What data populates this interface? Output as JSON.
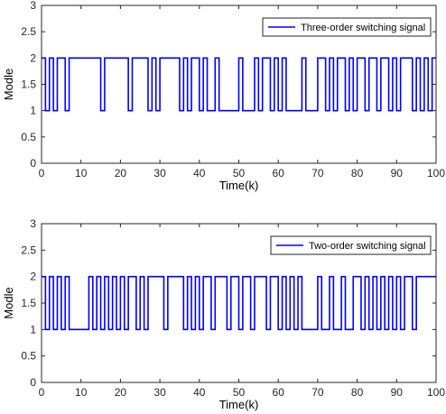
{
  "chart_data": [
    {
      "type": "line",
      "step": "post",
      "xlabel": "Time(k)",
      "ylabel": "Modle",
      "xlim": [
        0,
        100
      ],
      "ylim": [
        0,
        3
      ],
      "xticks": [
        "0",
        "10",
        "20",
        "30",
        "40",
        "50",
        "60",
        "70",
        "80",
        "90",
        "100"
      ],
      "yticks": [
        "0",
        "0.5",
        "1",
        "1.5",
        "2",
        "2.5",
        "3"
      ],
      "legend_position": "top-right",
      "series": [
        {
          "name": "Three-order switching signal",
          "color": "#0000ff",
          "x": [
            0,
            1,
            2,
            3,
            4,
            6,
            7,
            15,
            16,
            22,
            23,
            27,
            28,
            29,
            30,
            35,
            36,
            37,
            38,
            40,
            41,
            42,
            44,
            45,
            50,
            51,
            54,
            55,
            56,
            58,
            59,
            60,
            61,
            62,
            66,
            67,
            70,
            72,
            73,
            74,
            75,
            77,
            78,
            79,
            80,
            82,
            83,
            85,
            86,
            88,
            89,
            90,
            91,
            94,
            95,
            96,
            97,
            98,
            99,
            100
          ],
          "y": [
            2,
            1,
            2,
            1,
            2,
            1,
            2,
            1,
            2,
            1,
            2,
            1,
            2,
            1,
            2,
            1,
            2,
            1,
            2,
            1,
            2,
            1,
            2,
            1,
            2,
            1,
            2,
            1,
            2,
            1,
            2,
            1,
            2,
            1,
            2,
            1,
            2,
            1,
            2,
            1,
            2,
            1,
            2,
            1,
            2,
            1,
            2,
            1,
            2,
            1,
            2,
            1,
            2,
            1,
            2,
            1,
            2,
            1,
            2,
            2
          ]
        }
      ]
    },
    {
      "type": "line",
      "step": "post",
      "xlabel": "Time(k)",
      "ylabel": "Modle",
      "xlim": [
        0,
        100
      ],
      "ylim": [
        0,
        3
      ],
      "xticks": [
        "0",
        "10",
        "20",
        "30",
        "40",
        "50",
        "60",
        "70",
        "80",
        "90",
        "100"
      ],
      "yticks": [
        "0",
        "0.5",
        "1",
        "1.5",
        "2",
        "2.5",
        "3"
      ],
      "legend_position": "top-right",
      "series": [
        {
          "name": "Two-order switching signal",
          "color": "#0000ff",
          "x": [
            0,
            1,
            2,
            3,
            4,
            5,
            6,
            7,
            12,
            13,
            14,
            15,
            16,
            17,
            18,
            19,
            20,
            21,
            22,
            24,
            25,
            26,
            27,
            31,
            32,
            36,
            37,
            38,
            39,
            40,
            41,
            43,
            44,
            47,
            48,
            50,
            51,
            53,
            54,
            57,
            58,
            60,
            61,
            62,
            63,
            64,
            65,
            66,
            70,
            71,
            73,
            74,
            76,
            77,
            79,
            81,
            82,
            83,
            84,
            85,
            86,
            87,
            88,
            89,
            90,
            91,
            92,
            94,
            95,
            96,
            100
          ],
          "y": [
            2,
            1,
            2,
            1,
            2,
            1,
            2,
            1,
            2,
            1,
            2,
            1,
            2,
            1,
            2,
            1,
            2,
            1,
            2,
            1,
            2,
            1,
            2,
            1,
            2,
            1,
            2,
            1,
            2,
            1,
            2,
            1,
            2,
            1,
            2,
            1,
            2,
            1,
            2,
            1,
            2,
            1,
            2,
            1,
            2,
            1,
            2,
            1,
            2,
            1,
            2,
            1,
            2,
            1,
            2,
            1,
            2,
            1,
            2,
            1,
            2,
            1,
            2,
            1,
            2,
            1,
            2,
            1,
            2,
            2,
            2
          ]
        }
      ]
    }
  ]
}
